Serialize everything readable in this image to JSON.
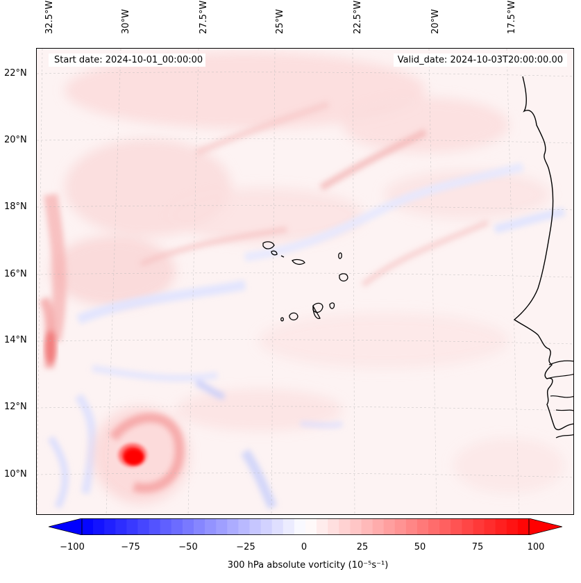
{
  "header": {
    "start_date": "Start date: 2024-10-01_00:00:00",
    "valid_date": "Valid_date: 2024-10-03T20:00:00.00"
  },
  "axes": {
    "lon_labels": [
      "32.5°W",
      "30°W",
      "27.5°W",
      "25°W",
      "22.5°W",
      "20°W",
      "17.5°W"
    ],
    "lat_labels": [
      "22°N",
      "20°N",
      "18°N",
      "16°N",
      "14°N",
      "12°N",
      "10°N"
    ]
  },
  "colorbar": {
    "ticks": [
      "−100",
      "−75",
      "−50",
      "−25",
      "0",
      "25",
      "50",
      "75",
      "100"
    ],
    "label": "300 hPa absolute vorticity (10⁻⁵s⁻¹)",
    "min": -100,
    "max": 100,
    "colormap": "bwr",
    "low_color": "#0000ff",
    "mid_color": "#ffffff",
    "high_color": "#ff0000"
  },
  "map": {
    "features": [
      "coastline",
      "cape-verde-islands",
      "west-africa-coast",
      "vortex-low"
    ],
    "gridlines": "dashed",
    "vortex_color": "#ff0000"
  }
}
